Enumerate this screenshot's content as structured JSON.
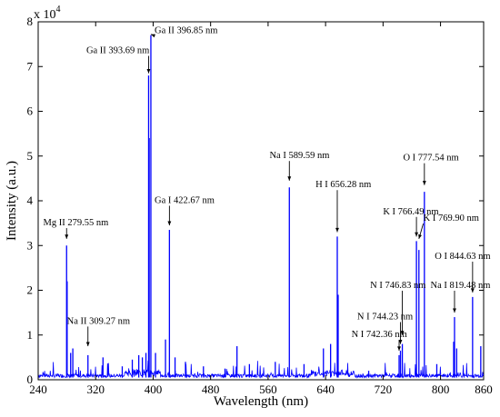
{
  "chart_data": {
    "type": "line",
    "title": "",
    "xlabel": "Wavelength (nm)",
    "ylabel": "Intensity (a.u.)",
    "y_multiplier_label": "x 10",
    "y_multiplier_exponent": "4",
    "xlim": [
      240,
      860
    ],
    "ylim": [
      0,
      8
    ],
    "y_scale_factor": 10000,
    "x_ticks": [
      240,
      320,
      400,
      480,
      560,
      640,
      720,
      800,
      860
    ],
    "y_ticks": [
      0,
      1,
      2,
      3,
      4,
      5,
      6,
      7,
      8
    ],
    "grid": false,
    "legend": "none",
    "line_color": "#0000ff",
    "series": [
      {
        "values_note": "",
        "peaks": [
          {
            "x": 279.55,
            "y": 3.0
          },
          {
            "x": 280.3,
            "y": 2.2
          },
          {
            "x": 285.2,
            "y": 0.6
          },
          {
            "x": 288.2,
            "y": 0.7
          },
          {
            "x": 309.27,
            "y": 0.55
          },
          {
            "x": 330.2,
            "y": 0.5
          },
          {
            "x": 357,
            "y": 0.3
          },
          {
            "x": 371,
            "y": 0.45
          },
          {
            "x": 380,
            "y": 0.55
          },
          {
            "x": 385,
            "y": 0.5
          },
          {
            "x": 390,
            "y": 0.6
          },
          {
            "x": 393.69,
            "y": 6.8
          },
          {
            "x": 394.5,
            "y": 5.4
          },
          {
            "x": 396.85,
            "y": 7.7
          },
          {
            "x": 403.3,
            "y": 0.6
          },
          {
            "x": 417.2,
            "y": 0.9
          },
          {
            "x": 422.67,
            "y": 3.35
          },
          {
            "x": 430.5,
            "y": 0.5
          },
          {
            "x": 445,
            "y": 0.4
          },
          {
            "x": 470,
            "y": 0.3
          },
          {
            "x": 500,
            "y": 0.25
          },
          {
            "x": 516.7,
            "y": 0.75
          },
          {
            "x": 534,
            "y": 0.35
          },
          {
            "x": 570,
            "y": 0.4
          },
          {
            "x": 589.59,
            "y": 4.3
          },
          {
            "x": 610,
            "y": 0.35
          },
          {
            "x": 637,
            "y": 0.7
          },
          {
            "x": 647,
            "y": 0.8
          },
          {
            "x": 656.28,
            "y": 3.2
          },
          {
            "x": 657.5,
            "y": 1.9
          },
          {
            "x": 700,
            "y": 0.2
          },
          {
            "x": 742.36,
            "y": 0.55
          },
          {
            "x": 744.23,
            "y": 0.65
          },
          {
            "x": 746.83,
            "y": 0.8
          },
          {
            "x": 766.49,
            "y": 3.1
          },
          {
            "x": 769.9,
            "y": 2.9
          },
          {
            "x": 777.54,
            "y": 4.2
          },
          {
            "x": 794.8,
            "y": 0.35
          },
          {
            "x": 818.3,
            "y": 0.85
          },
          {
            "x": 819.48,
            "y": 1.4
          },
          {
            "x": 822.5,
            "y": 0.7
          },
          {
            "x": 844.63,
            "y": 1.85
          },
          {
            "x": 856,
            "y": 0.75
          }
        ]
      }
    ],
    "annotations": [
      {
        "text": "Mg II 279.55 nm",
        "x": 279.55,
        "y": 3.0,
        "label_x": 247,
        "label_y": 3.45,
        "arrow_end_y": 3.15
      },
      {
        "text": "Na II 309.27 nm",
        "x": 309.27,
        "y": 0.55,
        "label_x": 280,
        "label_y": 1.25,
        "arrow_end_y": 0.75
      },
      {
        "text": "Ga II 393.69 nm",
        "x": 393.69,
        "y": 6.8,
        "label_x": 307,
        "label_y": 7.3,
        "arrow_end_y": 6.85
      },
      {
        "text": "Ga II 396.85 nm",
        "x": 396.85,
        "y": 7.7,
        "label_x": 402,
        "label_y": 7.75,
        "arrow_end_y": 7.72
      },
      {
        "text": "Ga I 422.67 nm",
        "x": 422.67,
        "y": 3.35,
        "label_x": 402,
        "label_y": 3.95,
        "arrow_end_y": 3.45
      },
      {
        "text": "Na I 589.59 nm",
        "x": 589.59,
        "y": 4.3,
        "label_x": 562,
        "label_y": 4.95,
        "arrow_end_y": 4.45
      },
      {
        "text": "H I 656.28 nm",
        "x": 656.28,
        "y": 3.2,
        "label_x": 626,
        "label_y": 4.3,
        "arrow_end_y": 3.3
      },
      {
        "text": "O I 777.54 nm",
        "x": 777.54,
        "y": 4.2,
        "label_x": 748,
        "label_y": 4.9,
        "arrow_end_y": 4.35
      },
      {
        "text": "K I 766.49 nm",
        "x": 766.49,
        "y": 3.1,
        "label_x": 720,
        "label_y": 3.7,
        "arrow_end_y": 3.2
      },
      {
        "text": "K I 769.90 nm",
        "x": 769.9,
        "y": 2.9,
        "label_x": 776,
        "label_y": 3.55,
        "arrow_end_y": 3.15
      },
      {
        "text": "N I 746.83 nm",
        "x": 746.83,
        "y": 0.8,
        "label_x": 702,
        "label_y": 2.05,
        "arrow_end_y": 1.0
      },
      {
        "text": "N I 744.23 nm",
        "x": 744.23,
        "y": 0.65,
        "label_x": 684,
        "label_y": 1.35,
        "arrow_end_y": 0.8
      },
      {
        "text": "N I 742.36 nm",
        "x": 742.36,
        "y": 0.55,
        "label_x": 676,
        "label_y": 0.95,
        "arrow_end_y": 0.65
      },
      {
        "text": "O I 844.63 nm",
        "x": 844.63,
        "y": 1.85,
        "label_x": 792,
        "label_y": 2.7,
        "arrow_end_y": 1.95
      },
      {
        "text": "Na I 819.48 nm",
        "x": 819.48,
        "y": 1.4,
        "label_x": 786,
        "label_y": 2.05,
        "arrow_end_y": 1.5
      }
    ]
  }
}
